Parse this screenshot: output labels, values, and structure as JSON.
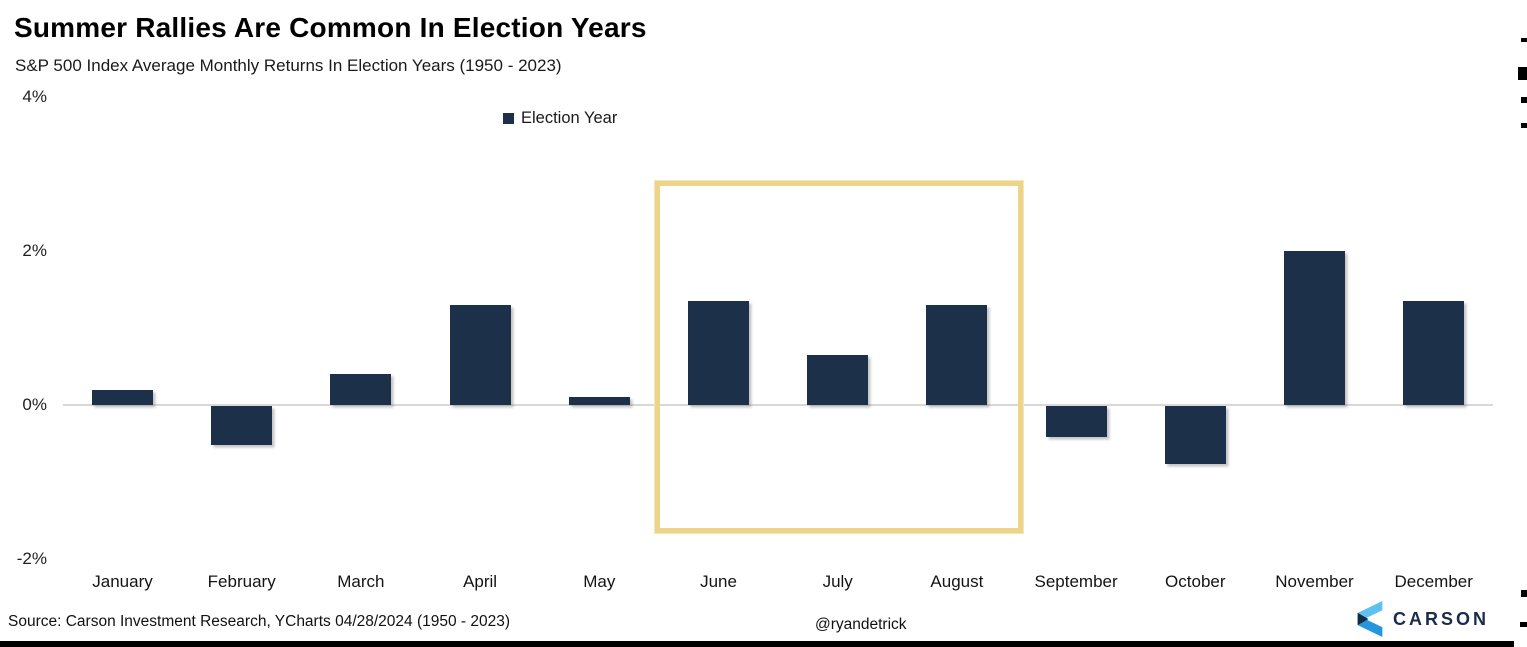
{
  "header": {
    "title": "Summer Rallies Are Common In Election Years",
    "subtitle": "S&P 500 Index Average Monthly Returns In Election Years (1950 - 2023)"
  },
  "legend": {
    "label": "Election Year"
  },
  "footer": {
    "source": "Source: Carson Investment Research, YCharts 04/28/2024 (1950 - 2023)",
    "handle": "@ryandetrick",
    "brand": "CARSON"
  },
  "colors": {
    "bar": "#1c3149",
    "highlight_border": "#ecd48a",
    "gridline": "#d8d8d8",
    "brand_navy": "#1b2b4a",
    "logo_light_blue": "#5ec1ef",
    "logo_mid_blue": "#2396dd",
    "logo_dark_navy": "#132944"
  },
  "chart_data": {
    "type": "bar",
    "title": "Summer Rallies Are Common In Election Years",
    "subtitle": "S&P 500 Index Average Monthly Returns In Election Years (1950 - 2023)",
    "series_name": "Election Year",
    "unit": "percent",
    "categories": [
      "January",
      "February",
      "March",
      "April",
      "May",
      "June",
      "July",
      "August",
      "September",
      "October",
      "November",
      "December"
    ],
    "values": [
      0.2,
      -0.5,
      0.4,
      1.3,
      0.1,
      1.35,
      0.65,
      1.3,
      -0.4,
      -0.75,
      2.0,
      1.35
    ],
    "yticks": [
      4,
      2,
      0,
      -2
    ],
    "ytick_labels": [
      "4%",
      "2%",
      "0%",
      "-2%"
    ],
    "ylim": [
      -2.6,
      4.2
    ],
    "grid": "zero-line-only",
    "legend_position": "top-center",
    "highlight": {
      "label": "summer-months",
      "categories": [
        "June",
        "July",
        "August"
      ],
      "start_index": 5,
      "end_index": 7
    }
  }
}
